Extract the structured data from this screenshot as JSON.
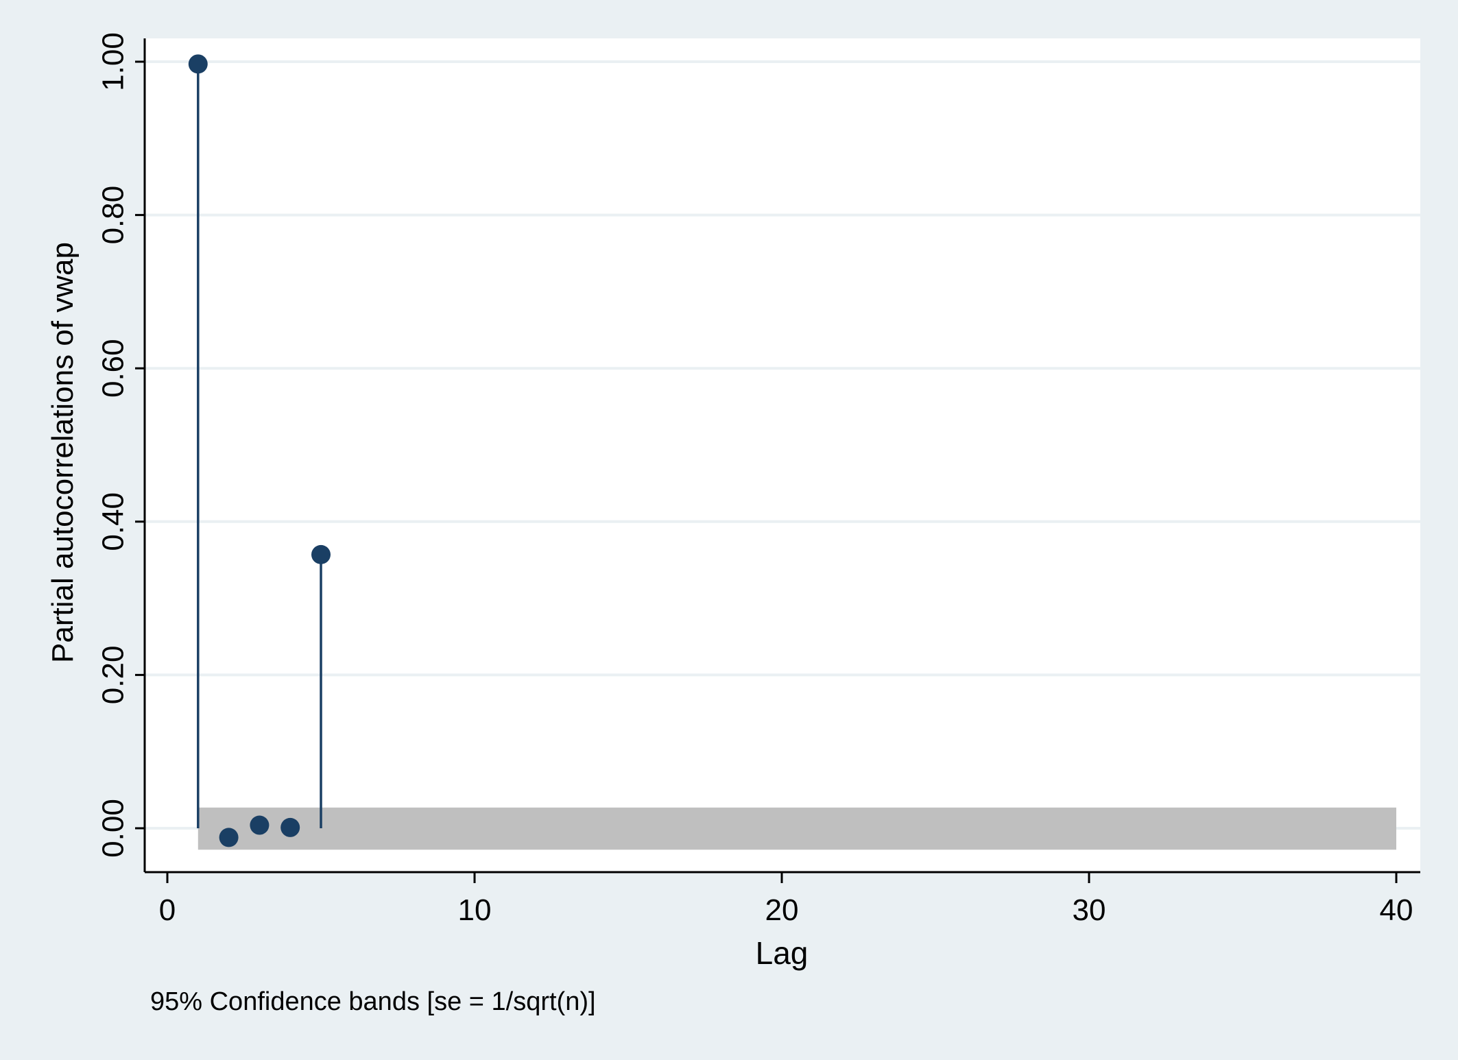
{
  "chart_data": {
    "type": "scatter",
    "xlabel": "Lag",
    "ylabel": "Partial autocorrelations of vwap",
    "note": "95% Confidence bands [se = 1/sqrt(n)]",
    "xlim": [
      0,
      40
    ],
    "ylim": [
      -0.06,
      1.02
    ],
    "x_ticks": [
      0,
      10,
      20,
      30,
      40
    ],
    "x_tick_labels": [
      "0",
      "10",
      "20",
      "30",
      "40"
    ],
    "y_ticks": [
      0,
      0.2,
      0.4,
      0.6,
      0.8,
      1.0
    ],
    "y_tick_labels": [
      "0.00",
      "0.20",
      "0.40",
      "0.60",
      "0.80",
      "1.00"
    ],
    "grid": true,
    "confidence_band": {
      "x_range": [
        1,
        40
      ],
      "lower": -0.028,
      "upper": 0.027
    },
    "series": [
      {
        "x": [
          1,
          2,
          3,
          4,
          5
        ],
        "values": [
          0.997,
          -0.012,
          0.004,
          0.001,
          0.357
        ]
      }
    ],
    "colors": {
      "page_background": "#eaf0f3",
      "plot_background": "#ffffff",
      "gridline": "#eaf0f3",
      "marker": "#1a3f64",
      "band": "#bfbfbf",
      "axis": "#000000"
    }
  }
}
